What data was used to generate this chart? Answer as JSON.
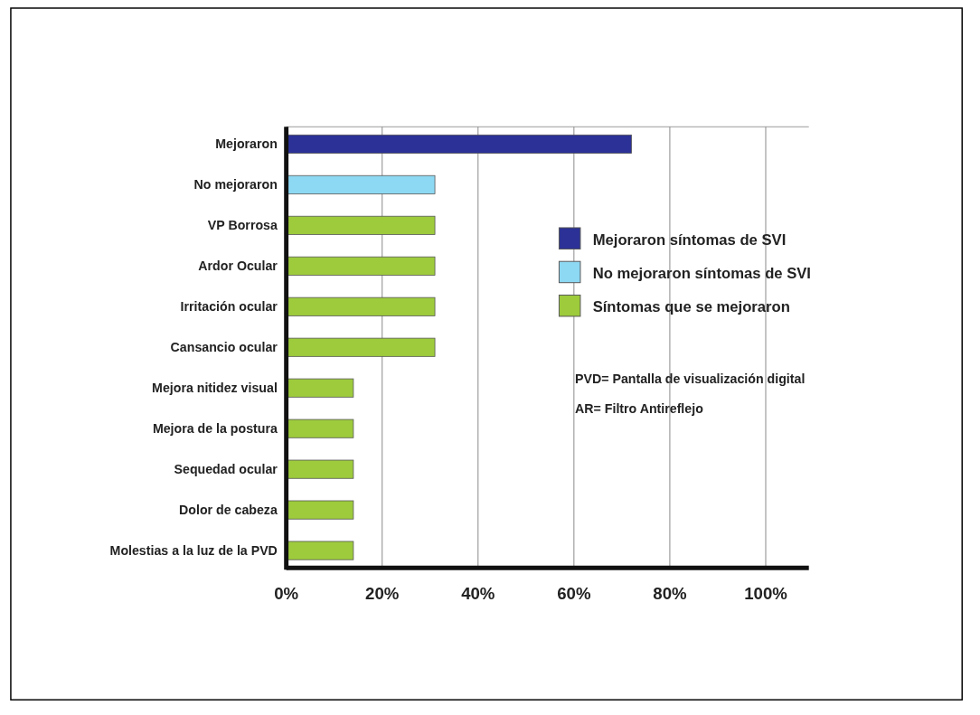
{
  "chart_data": {
    "type": "bar",
    "orientation": "horizontal",
    "categories": [
      "Mejoraron",
      "No mejoraron",
      "VP Borrosa",
      "Ardor Ocular",
      "Irritación ocular",
      "Cansancio ocular",
      "Mejora nitidez visual",
      "Mejora de la postura",
      "Sequedad ocular",
      "Dolor de cabeza",
      "Molestias a la luz de la PVD"
    ],
    "series": [
      {
        "name": "Mejoraron síntomas de SVI",
        "color": "#2b3196",
        "values": [
          72,
          null,
          null,
          null,
          null,
          null,
          null,
          null,
          null,
          null,
          null
        ]
      },
      {
        "name": "No mejoraron síntomas de SVI",
        "color": "#8dd8f3",
        "values": [
          null,
          31,
          null,
          null,
          null,
          null,
          null,
          null,
          null,
          null,
          null
        ]
      },
      {
        "name": "Síntomas que se mejoraron",
        "color": "#9dcb3c",
        "values": [
          null,
          null,
          31,
          31,
          31,
          31,
          14,
          14,
          14,
          14,
          14
        ]
      }
    ],
    "xlim": [
      0,
      109
    ],
    "xticks": [
      {
        "value": 0,
        "label": "0%"
      },
      {
        "value": 20,
        "label": "20%"
      },
      {
        "value": 40,
        "label": "40%"
      },
      {
        "value": 60,
        "label": "60%"
      },
      {
        "value": 80,
        "label": "80%"
      },
      {
        "value": 100,
        "label": "100%"
      }
    ],
    "grid": "x",
    "legend": "right",
    "annotations": [
      "PVD= Pantalla de visualización digital",
      "AR= Filtro Antireflejo"
    ]
  }
}
